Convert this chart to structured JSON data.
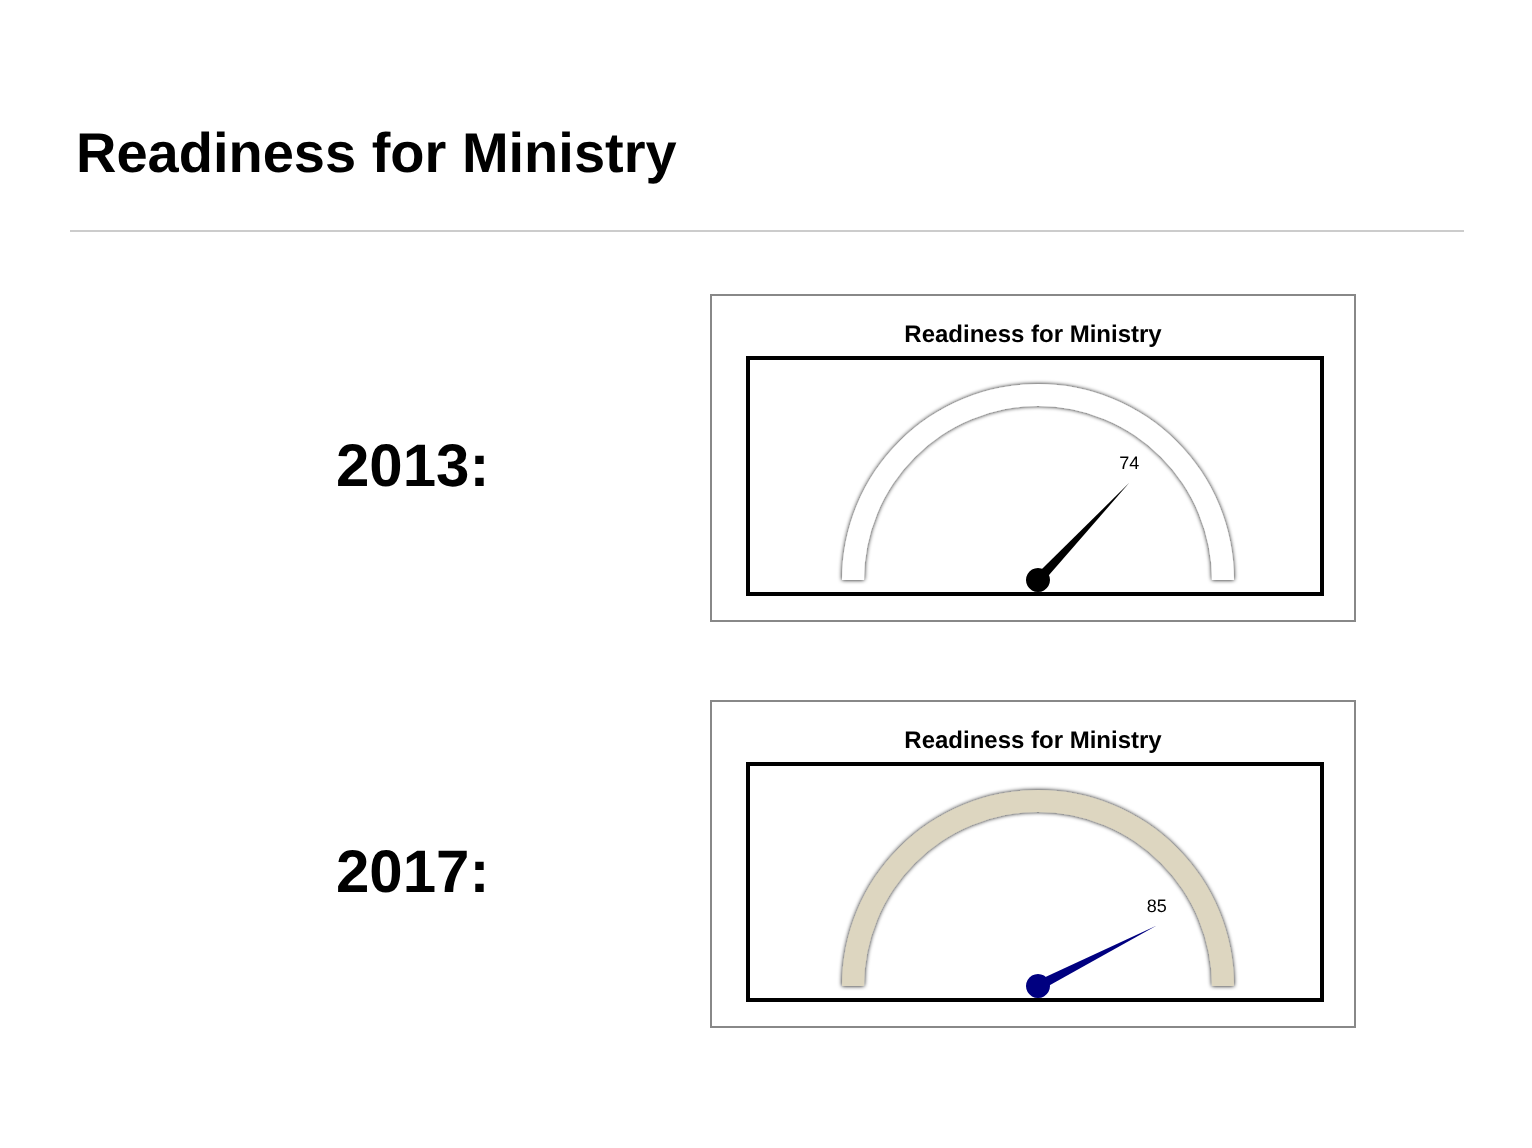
{
  "chart_data": [
    {
      "type": "other",
      "title": "Readiness for Ministry"
    },
    {
      "type": "other",
      "title": "Readiness for Ministry",
      "annotations": [
        "2013:"
      ],
      "values": [
        74
      ],
      "color": "#000000",
      "colors": [
        "#ffffff"
      ],
      "data_labels": true
    },
    {
      "type": "other",
      "title": "Readiness for Ministry",
      "annotations": [
        "2017:"
      ],
      "values": [
        85
      ],
      "color": "#000080",
      "colors": [
        "#ddd6c0"
      ],
      "data_labels": true
    }
  ]
}
